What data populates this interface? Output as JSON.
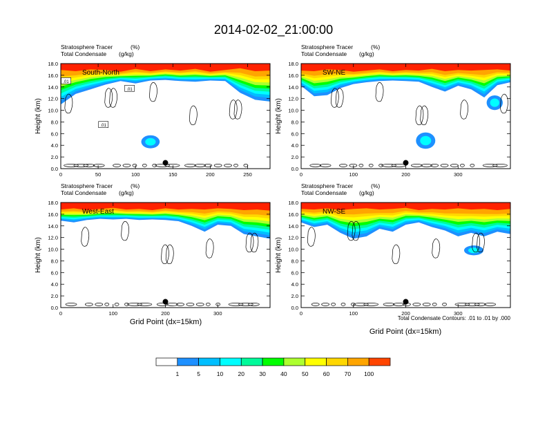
{
  "figure": {
    "title": "2014-02-02_21:00:00",
    "footer_note": "Total Condensate Contours: .01 to .01 by .000",
    "xlabel": "Grid Point (dx=15km)",
    "ylabel": "Height (km)"
  },
  "chart_data": [
    {
      "type": "heatmap",
      "title": "South-North",
      "field_label": "Stratosphere Tracer",
      "field_unit": "(%)",
      "contour_label": "Total Condensate",
      "contour_unit": "(g/kg)",
      "xlim": [
        0,
        280
      ],
      "xticks": [
        0,
        50,
        100,
        150,
        200,
        250
      ],
      "ylim": [
        0,
        18
      ],
      "yticks": [
        0.0,
        2.0,
        4.0,
        6.0,
        8.0,
        10.0,
        12.0,
        14.0,
        16.0,
        18.0
      ],
      "ytick_labels": [
        "0.0",
        "2.0",
        "4.0",
        "6.0",
        "8.0",
        "10.0",
        "12.0",
        "14.0",
        "16.0",
        "18.0"
      ],
      "marker_point": {
        "x": 140,
        "y": 1.0
      },
      "contour_labels": [
        {
          "text": ".01",
          "x": 7,
          "y": 15.0
        },
        {
          "text": ".01",
          "x": 92,
          "y": 13.7
        },
        {
          "text": ".01",
          "x": 57,
          "y": 7.5
        }
      ],
      "tracer_profile": {
        "x": [
          0,
          20,
          40,
          60,
          80,
          100,
          120,
          140,
          160,
          180,
          200,
          220,
          240,
          260,
          280
        ],
        "top_red": [
          16.9,
          16.7,
          17.0,
          16.9,
          16.6,
          17.1,
          16.7,
          17.0,
          16.8,
          17.1,
          16.6,
          16.9,
          17.2,
          16.7,
          16.8
        ],
        "bottom": [
          11.0,
          12.8,
          13.6,
          14.4,
          15.0,
          14.6,
          15.1,
          15.2,
          15.0,
          14.9,
          15.1,
          15.0,
          13.0,
          11.8,
          11.5
        ]
      },
      "tracer_patches": [
        {
          "x": 120,
          "y": 4.6,
          "rx": 4,
          "ry": 0.8
        }
      ]
    },
    {
      "type": "heatmap",
      "title": "SW-NE",
      "field_label": "Stratosphere Tracer",
      "field_unit": "(%)",
      "contour_label": "Total Condensate",
      "contour_unit": "(g/kg)",
      "xlim": [
        0,
        400
      ],
      "xticks": [
        0,
        100,
        200,
        300
      ],
      "ylim": [
        0,
        18
      ],
      "yticks": [
        0.0,
        2.0,
        4.0,
        6.0,
        8.0,
        10.0,
        12.0,
        14.0,
        16.0,
        18.0
      ],
      "ytick_labels": [
        "0.0",
        "2.0",
        "4.0",
        "6.0",
        "8.0",
        "10.0",
        "12.0",
        "14.0",
        "16.0",
        "18.0"
      ],
      "marker_point": {
        "x": 200,
        "y": 1.0
      },
      "contour_labels": [],
      "tracer_profile": {
        "x": [
          0,
          25,
          50,
          75,
          100,
          125,
          150,
          175,
          200,
          225,
          250,
          275,
          300,
          325,
          350,
          375,
          400
        ],
        "top_red": [
          16.8,
          16.7,
          17.0,
          16.9,
          16.6,
          16.8,
          17.0,
          16.7,
          16.9,
          16.8,
          17.1,
          16.7,
          16.9,
          16.8,
          16.9,
          17.0,
          16.8
        ],
        "bottom": [
          14.2,
          12.4,
          12.6,
          13.8,
          14.5,
          14.8,
          15.0,
          15.1,
          15.0,
          14.9,
          14.0,
          13.2,
          14.2,
          13.6,
          12.2,
          14.3,
          14.8
        ]
      },
      "tracer_patches": [
        {
          "x": 238,
          "y": 4.8,
          "rx": 6,
          "ry": 1.0
        },
        {
          "x": 370,
          "y": 11.3,
          "rx": 5,
          "ry": 0.9
        }
      ]
    },
    {
      "type": "heatmap",
      "title": "West-East",
      "field_label": "Stratosphere Tracer",
      "field_unit": "(%)",
      "contour_label": "Total Condensate",
      "contour_unit": "(g/kg)",
      "xlim": [
        0,
        400
      ],
      "xticks": [
        0,
        100,
        200,
        300
      ],
      "ylim": [
        0,
        18
      ],
      "yticks": [
        0.0,
        2.0,
        4.0,
        6.0,
        8.0,
        10.0,
        12.0,
        14.0,
        16.0,
        18.0
      ],
      "ytick_labels": [
        "0.0",
        "2.0",
        "4.0",
        "6.0",
        "8.0",
        "10.0",
        "12.0",
        "14.0",
        "16.0",
        "18.0"
      ],
      "marker_point": {
        "x": 200,
        "y": 1.0
      },
      "contour_labels": [],
      "tracer_profile": {
        "x": [
          0,
          25,
          50,
          75,
          100,
          125,
          150,
          175,
          200,
          225,
          250,
          275,
          300,
          325,
          350,
          375,
          400
        ],
        "top_red": [
          16.8,
          17.0,
          16.7,
          16.9,
          17.1,
          16.8,
          16.9,
          16.7,
          17.0,
          16.8,
          16.9,
          16.8,
          17.0,
          16.9,
          16.7,
          16.8,
          16.6
        ],
        "bottom": [
          14.9,
          14.6,
          15.0,
          15.2,
          15.1,
          15.2,
          15.0,
          15.1,
          15.0,
          14.8,
          14.0,
          13.0,
          14.2,
          14.0,
          12.6,
          12.2,
          11.8
        ]
      },
      "tracer_patches": []
    },
    {
      "type": "heatmap",
      "title": "NW-SE",
      "field_label": "Stratosphere Tracer",
      "field_unit": "(%)",
      "contour_label": "Total Condensate",
      "contour_unit": "(g/kg)",
      "xlim": [
        0,
        400
      ],
      "xticks": [
        0,
        100,
        200,
        300
      ],
      "ylim": [
        0,
        18
      ],
      "yticks": [
        0.0,
        2.0,
        4.0,
        6.0,
        8.0,
        10.0,
        12.0,
        14.0,
        16.0,
        18.0
      ],
      "ytick_labels": [
        "0.0",
        "2.0",
        "4.0",
        "6.0",
        "8.0",
        "10.0",
        "12.0",
        "14.0",
        "16.0",
        "18.0"
      ],
      "marker_point": {
        "x": 200,
        "y": 1.0
      },
      "contour_labels": [],
      "tracer_profile": {
        "x": [
          0,
          25,
          50,
          75,
          100,
          125,
          150,
          175,
          200,
          225,
          250,
          275,
          300,
          325,
          350,
          375,
          400
        ],
        "top_red": [
          16.9,
          16.8,
          17.0,
          16.7,
          16.9,
          17.0,
          16.8,
          16.9,
          17.1,
          16.7,
          16.9,
          16.8,
          17.0,
          16.8,
          16.9,
          16.7,
          16.9
        ],
        "bottom": [
          14.6,
          13.8,
          14.2,
          12.8,
          11.8,
          12.2,
          13.5,
          13.0,
          14.2,
          14.6,
          13.8,
          13.2,
          12.2,
          12.8,
          12.2,
          13.0,
          12.6
        ]
      },
      "tracer_patches": [
        {
          "x": 330,
          "y": 9.8,
          "rx": 6,
          "ry": 0.6
        }
      ]
    }
  ],
  "colorbar": {
    "levels": [
      "1",
      "5",
      "10",
      "20",
      "30",
      "40",
      "50",
      "60",
      "70",
      "100"
    ],
    "colors": [
      "#ffffff",
      "#1e90ff",
      "#00bfff",
      "#00ffff",
      "#00fa9a",
      "#00ff00",
      "#adff2f",
      "#ffff00",
      "#ffd700",
      "#ffa500",
      "#ff4500"
    ]
  }
}
